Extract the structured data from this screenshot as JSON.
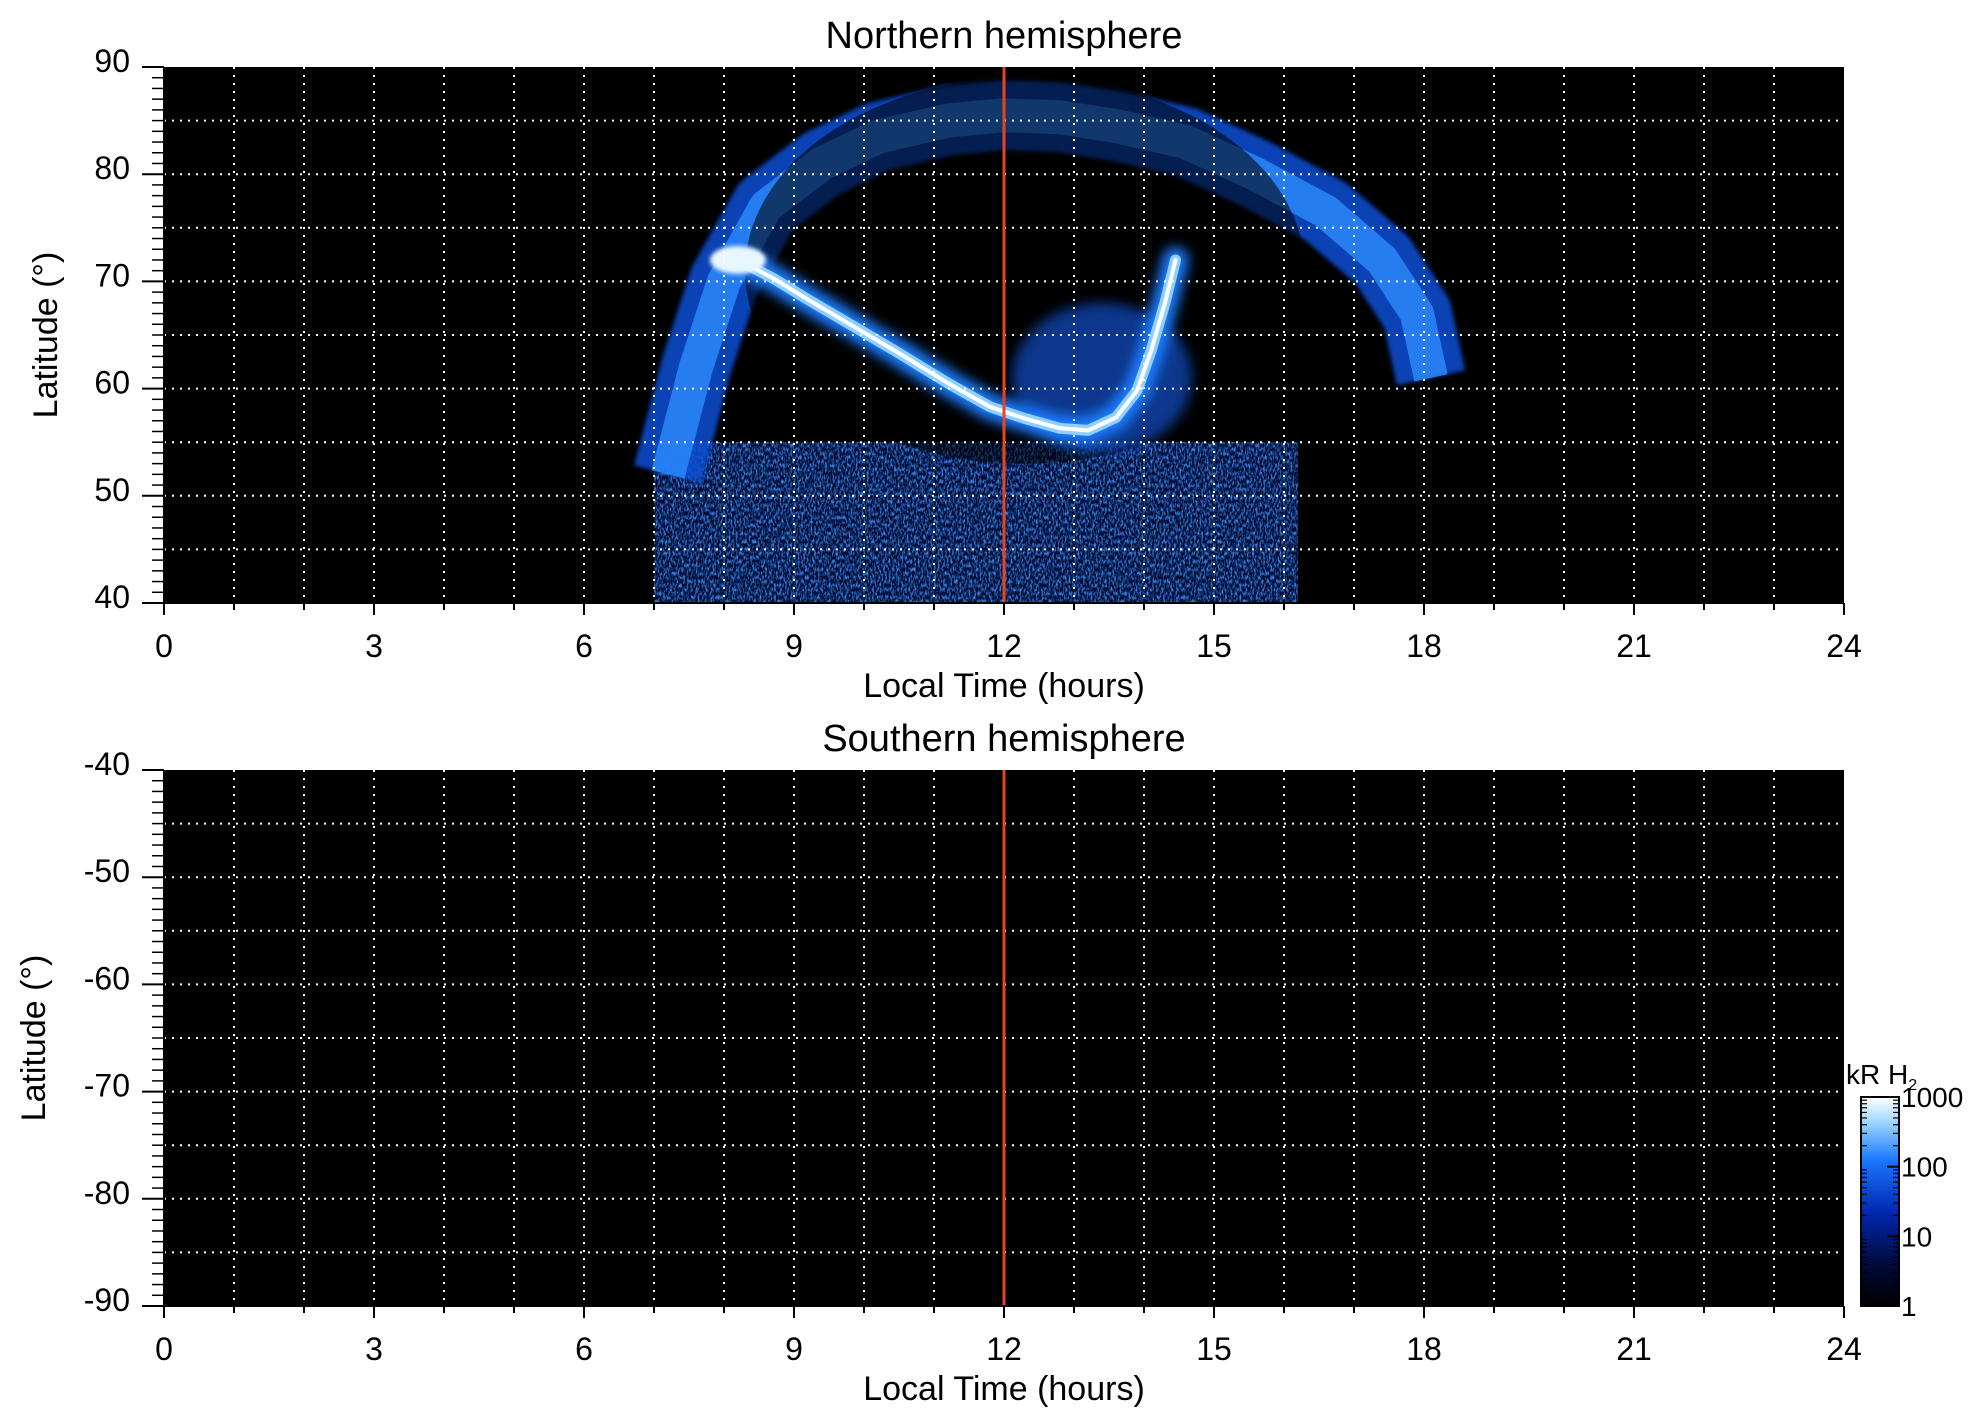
{
  "chart_data": [
    {
      "type": "heatmap",
      "title": "Northern hemisphere",
      "xlabel": "Local Time (hours)",
      "ylabel": "Latitude (°)",
      "xlim": [
        0,
        24
      ],
      "ylim": [
        40,
        90
      ],
      "xticks": [
        0,
        3,
        6,
        9,
        12,
        15,
        18,
        21,
        24
      ],
      "xminor_step": 1,
      "yticks": [
        40,
        50,
        60,
        70,
        80,
        90
      ],
      "yminor_step": 1,
      "grid": true,
      "grid_x_step": 1,
      "grid_y_step": 5,
      "grid_style": "dotted white",
      "background_color": "#000000",
      "marker_line": {
        "x": 12,
        "color": "#e8441f"
      },
      "features": {
        "oval_x": [
          7.2,
          7.6,
          8.0,
          8.6,
          9.4,
          10.2,
          11.2,
          12.0,
          12.8,
          13.6,
          14.6,
          15.6,
          16.6,
          17.4,
          17.9,
          18.1
        ],
        "oval_y": [
          52.0,
          62.0,
          70.0,
          77.0,
          81.0,
          83.5,
          85.0,
          85.5,
          85.3,
          84.5,
          83.0,
          80.0,
          76.5,
          72.0,
          67.0,
          61.0
        ],
        "arc_x": [
          8.2,
          8.7,
          9.2,
          9.8,
          10.5,
          11.2,
          11.8,
          12.3,
          12.8,
          13.2,
          13.6,
          13.9,
          14.1,
          14.3,
          14.45
        ],
        "arc_y": [
          72.0,
          70.3,
          68.3,
          66.0,
          63.3,
          60.5,
          58.3,
          57.2,
          56.3,
          56.1,
          57.3,
          59.8,
          63.5,
          68.0,
          72.0
        ],
        "diffuse_region": {
          "x": [
            7.0,
            16.2
          ],
          "y": [
            40.0,
            55.0
          ]
        },
        "arc_peak_kR": 1000
      }
    },
    {
      "type": "heatmap",
      "title": "Southern hemisphere",
      "xlabel": "Local Time (hours)",
      "ylabel": "Latitude (°)",
      "xlim": [
        0,
        24
      ],
      "ylim": [
        -90,
        -40
      ],
      "xticks": [
        0,
        3,
        6,
        9,
        12,
        15,
        18,
        21,
        24
      ],
      "xminor_step": 1,
      "yticks": [
        -40,
        -50,
        -60,
        -70,
        -80,
        -90
      ],
      "yminor_step": 1,
      "grid": true,
      "grid_x_step": 1,
      "grid_y_step": 5,
      "grid_style": "dotted white",
      "background_color": "#000000",
      "marker_line": {
        "x": 12,
        "color": "#e8441f"
      },
      "features": null
    }
  ],
  "colorbar": {
    "label": "kR H",
    "label_subscript": "2",
    "scale": "log",
    "range": [
      1,
      1000
    ],
    "ticks": [
      "1",
      "10",
      "100",
      "1000"
    ],
    "tick_values": [
      1,
      10,
      100,
      1000
    ],
    "placement": "right of lower panel",
    "colors": [
      "#000000",
      "#000a3a",
      "#0028b0",
      "#1a78ff",
      "#9fd6ff",
      "#ffffff"
    ]
  }
}
